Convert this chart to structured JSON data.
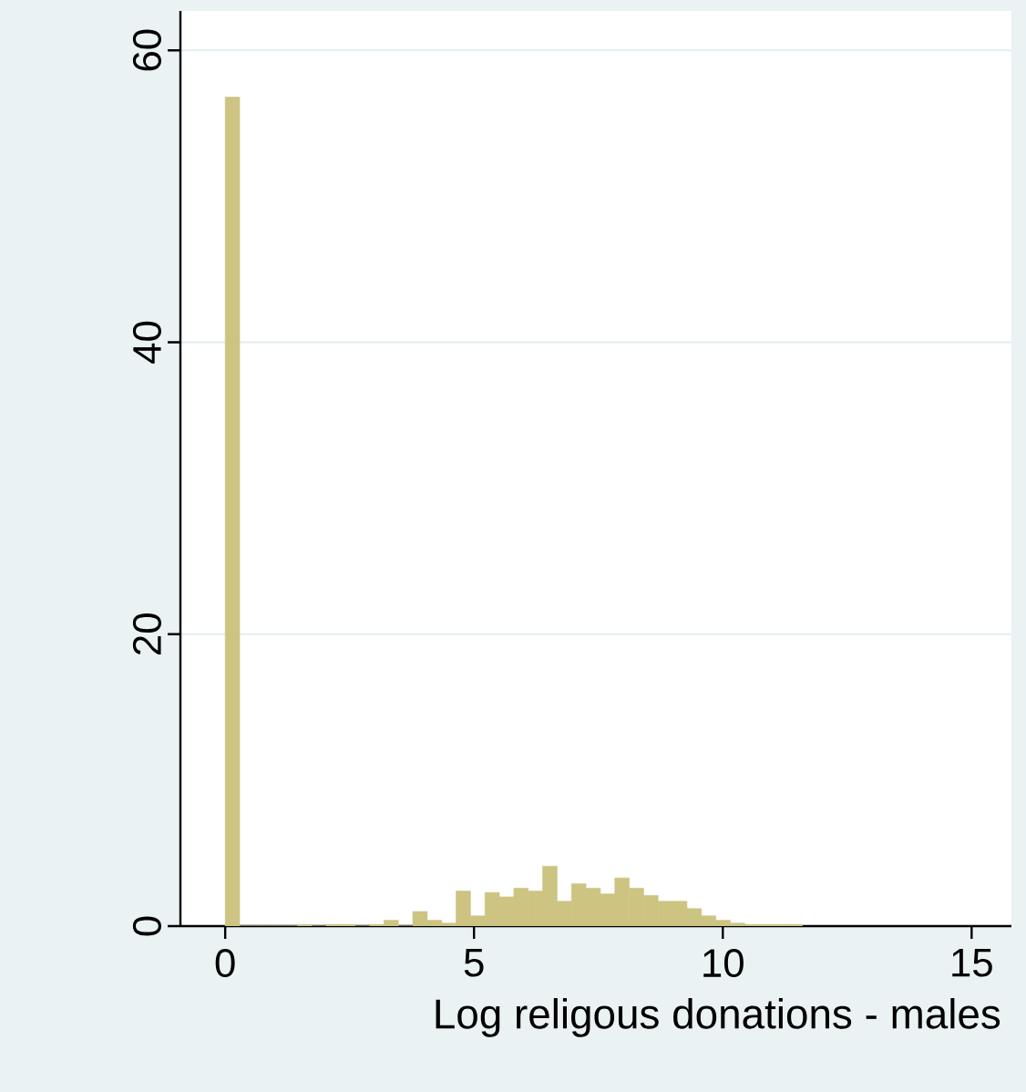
{
  "chart_data": {
    "type": "histogram",
    "xlabel": "Log religous donations - males",
    "bins": [
      0,
      0.29,
      0.58,
      0.87,
      1.16,
      1.45,
      1.74,
      2.03,
      2.32,
      2.61,
      2.9,
      3.19,
      3.48,
      3.77,
      4.06,
      4.35,
      4.64,
      4.93,
      5.22,
      5.51,
      5.8,
      6.09,
      6.38,
      6.67,
      6.96,
      7.25,
      7.54,
      7.83,
      8.12,
      8.41,
      8.7,
      8.99,
      9.28,
      9.57,
      9.86,
      10.15,
      10.44,
      10.73,
      11.02,
      11.31,
      11.6
    ],
    "values": [
      56.8,
      0,
      0,
      0,
      0,
      0.1,
      0,
      0.1,
      0.1,
      0,
      0.1,
      0.4,
      0,
      1.0,
      0.4,
      0.2,
      2.4,
      0.7,
      2.3,
      2.0,
      2.6,
      2.4,
      4.1,
      1.7,
      2.9,
      2.6,
      2.2,
      3.3,
      2.6,
      2.1,
      1.7,
      1.7,
      1.2,
      0.7,
      0.4,
      0.2,
      0.1,
      0.1,
      0.1,
      0.1
    ],
    "color": "#cdc482",
    "xlim": [
      -0.9,
      15.8
    ],
    "ylim": [
      0,
      62.7
    ],
    "xticks": [
      0,
      5,
      10,
      15
    ],
    "yticks": [
      0,
      20,
      40,
      60
    ],
    "grid": "y"
  }
}
